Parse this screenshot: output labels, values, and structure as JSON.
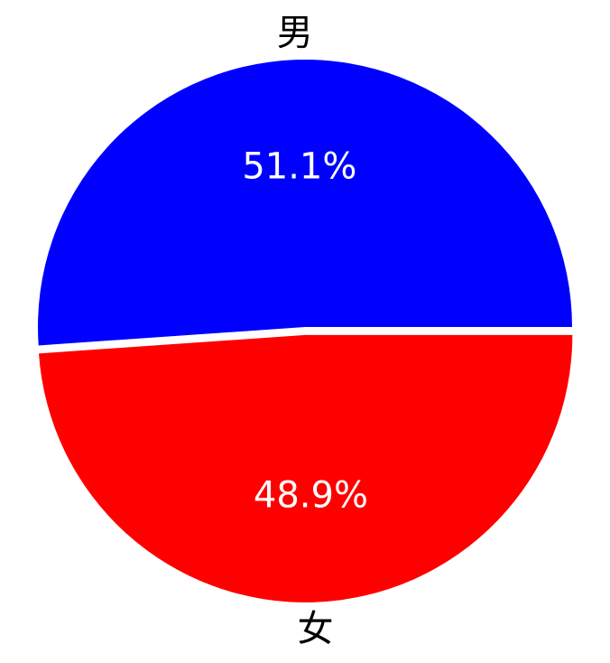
{
  "chart_data": {
    "type": "pie",
    "slices": [
      {
        "label": "男",
        "value": 51.1,
        "percent_label": "51.1%",
        "color": "#0000ff"
      },
      {
        "label": "女",
        "value": 48.9,
        "percent_label": "48.9%",
        "color": "#ff0000"
      }
    ],
    "start_angle_deg": 0,
    "direction": "counterclockwise",
    "explode": [
      0,
      0.03
    ]
  }
}
